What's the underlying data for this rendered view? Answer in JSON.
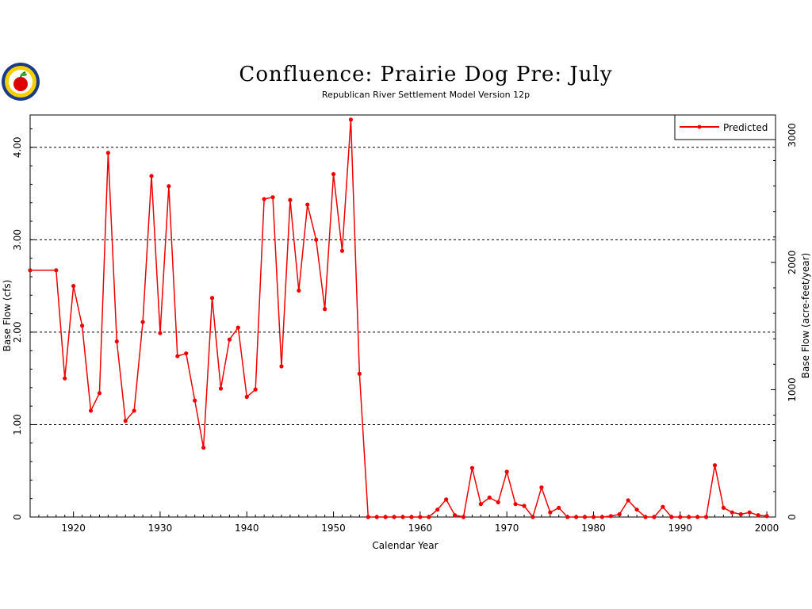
{
  "chart_data": {
    "type": "line",
    "title": "Confluence: Prairie Dog Pre: July",
    "subtitle": "Republican River Settlement Model Version 12p",
    "xlabel": "Calendar Year",
    "ylabel": "Base Flow (cfs)",
    "y2label": "Base Flow (acre-feet/year)",
    "xlim": [
      1915,
      2001
    ],
    "ylim": [
      0,
      4.35
    ],
    "y2_per_y": 726.0,
    "x_ticks": [
      1920,
      1930,
      1940,
      1950,
      1960,
      1970,
      1980,
      1990,
      2000
    ],
    "y_ticks": [
      0,
      1.0,
      2.0,
      3.0,
      4.0
    ],
    "y_tick_labels": [
      "0",
      "1.00",
      "2.00",
      "3.00",
      "4.00"
    ],
    "y2_ticks": [
      0,
      1000,
      2000,
      3000
    ],
    "y2_tick_labels": [
      "0",
      "1000",
      "2000",
      "3000"
    ],
    "grid": "horizontal-dashed",
    "legend": "top-right",
    "color": "#ee0000",
    "series": [
      {
        "name": "Predicted",
        "x": [
          1915,
          1918,
          1919,
          1920,
          1921,
          1922,
          1923,
          1924,
          1925,
          1926,
          1927,
          1928,
          1929,
          1930,
          1931,
          1932,
          1933,
          1934,
          1935,
          1936,
          1937,
          1938,
          1939,
          1940,
          1941,
          1942,
          1943,
          1944,
          1945,
          1946,
          1947,
          1948,
          1949,
          1950,
          1951,
          1952,
          1953,
          1954,
          1955,
          1956,
          1957,
          1958,
          1959,
          1960,
          1961,
          1962,
          1963,
          1964,
          1965,
          1966,
          1967,
          1968,
          1969,
          1970,
          1971,
          1972,
          1973,
          1974,
          1975,
          1976,
          1977,
          1978,
          1979,
          1980,
          1981,
          1982,
          1983,
          1984,
          1985,
          1986,
          1987,
          1988,
          1989,
          1990,
          1991,
          1992,
          1993,
          1994,
          1995,
          1996,
          1997,
          1998,
          1999,
          2000
        ],
        "y": [
          2.67,
          2.67,
          1.5,
          2.5,
          2.07,
          1.15,
          1.34,
          3.94,
          1.9,
          1.04,
          1.15,
          2.11,
          3.69,
          1.99,
          3.58,
          1.74,
          1.77,
          1.26,
          0.75,
          2.37,
          1.39,
          1.92,
          2.05,
          1.3,
          1.38,
          3.44,
          3.46,
          1.63,
          3.43,
          2.45,
          3.38,
          3.0,
          2.25,
          3.71,
          2.88,
          4.3,
          1.55,
          0.0,
          0.0,
          0.0,
          0.0,
          0.0,
          0.0,
          0.0,
          0.0,
          0.08,
          0.19,
          0.02,
          0.0,
          0.53,
          0.14,
          0.21,
          0.16,
          0.49,
          0.14,
          0.12,
          0.0,
          0.32,
          0.05,
          0.1,
          0.0,
          0.0,
          0.0,
          0.0,
          0.0,
          0.01,
          0.03,
          0.18,
          0.08,
          0.0,
          0.0,
          0.11,
          0.0,
          0.0,
          0.0,
          0.0,
          0.0,
          0.56,
          0.1,
          0.05,
          0.03,
          0.05,
          0.02,
          0.01
        ]
      }
    ]
  }
}
